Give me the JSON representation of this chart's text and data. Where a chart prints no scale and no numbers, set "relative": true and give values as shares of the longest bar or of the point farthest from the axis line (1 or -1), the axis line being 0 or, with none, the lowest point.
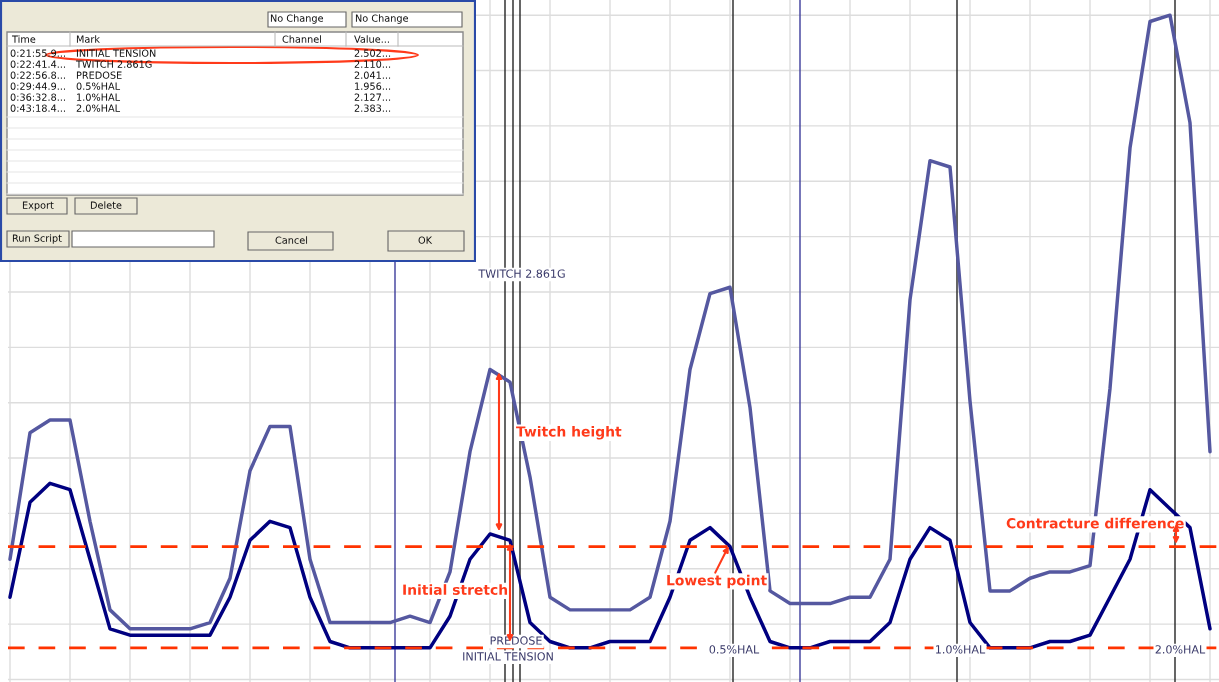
{
  "chart_data": {
    "type": "line",
    "relative": true,
    "grid": true,
    "categories": [
      null,
      null,
      null,
      null,
      null,
      null,
      null,
      null,
      null,
      null,
      null,
      null,
      null,
      null,
      null,
      null,
      null,
      null,
      null,
      null,
      null,
      null,
      null,
      null,
      null,
      null,
      null,
      null,
      null,
      null,
      null,
      null,
      null,
      null,
      null,
      null,
      null,
      null,
      null,
      null,
      null,
      null,
      null,
      null,
      null,
      null,
      null,
      null,
      null,
      null,
      null,
      null,
      null,
      null,
      null,
      null,
      null,
      null,
      null,
      null,
      null
    ],
    "series": [
      {
        "color": "#000080",
        "values": [
          0.08,
          0.23,
          0.26,
          0.25,
          0.14,
          0.03,
          0.02,
          0.02,
          0.02,
          0.02,
          0.02,
          0.08,
          0.17,
          0.2,
          0.19,
          0.08,
          0.01,
          0,
          0,
          0,
          0,
          0,
          0.05,
          0.14,
          0.18,
          0.17,
          0.04,
          0.01,
          0,
          0,
          0.01,
          0.01,
          0.01,
          0.08,
          0.17,
          0.19,
          0.16,
          0.08,
          0.01,
          0,
          0,
          0.01,
          0.01,
          0.01,
          0.04,
          0.14,
          0.19,
          0.17,
          0.04,
          0,
          0,
          0,
          0.01,
          0.01,
          0.02,
          0.08,
          0.14,
          0.25,
          0.22,
          0.19,
          0.03
        ]
      },
      {
        "color": "#5558a0",
        "values": [
          0.14,
          0.34,
          0.36,
          0.36,
          0.2,
          0.06,
          0.03,
          0.03,
          0.03,
          0.03,
          0.04,
          0.11,
          0.28,
          0.35,
          0.35,
          0.14,
          0.04,
          0.04,
          0.04,
          0.04,
          0.05,
          0.04,
          0.12,
          0.31,
          0.44,
          0.42,
          0.27,
          0.08,
          0.06,
          0.06,
          0.06,
          0.06,
          0.08,
          0.2,
          0.44,
          0.56,
          0.57,
          0.38,
          0.09,
          0.07,
          0.07,
          0.07,
          0.08,
          0.08,
          0.14,
          0.55,
          0.77,
          0.76,
          0.39,
          0.09,
          0.09,
          0.11,
          0.12,
          0.12,
          0.13,
          0.41,
          0.79,
          0.99,
          1,
          0.83,
          0.31
        ]
      }
    ],
    "ref_lines": [
      {
        "axis": "y",
        "value": 0,
        "color": "#ff3300",
        "line_style": "dashed",
        "label": null
      },
      {
        "axis": "y",
        "value": 0.16,
        "color": "#ff3300",
        "line_style": "dashed",
        "label": null
      }
    ],
    "annotations": [
      "No Change",
      "No Change",
      "Time",
      "Mark",
      "Channel",
      "Value...",
      "0:21:55.9...",
      "INITIAL TENSION",
      "2.502...",
      "0:22:41.4...",
      "TWITCH 2.861G",
      "2.110...",
      "0:22:56.8...",
      "PREDOSE",
      "2.041...",
      "0:29:44.9...",
      "0.5%HAL",
      "1.956...",
      "0:36:32.8...",
      "1.0%HAL",
      "2.127...",
      "0:43:18.4...",
      "2.0%HAL",
      "2.383...",
      "Export",
      "Delete",
      "Run Script",
      "Cancel",
      "OK",
      "INITIAL TENSION",
      "TWITCH 2.861G",
      "PREDOSE",
      "0.5%HAL",
      "1.0%HAL",
      "2.0%HAL",
      "Twitch height",
      "Initial stretch",
      "Lowest point",
      "Contracture difference"
    ]
  }
}
